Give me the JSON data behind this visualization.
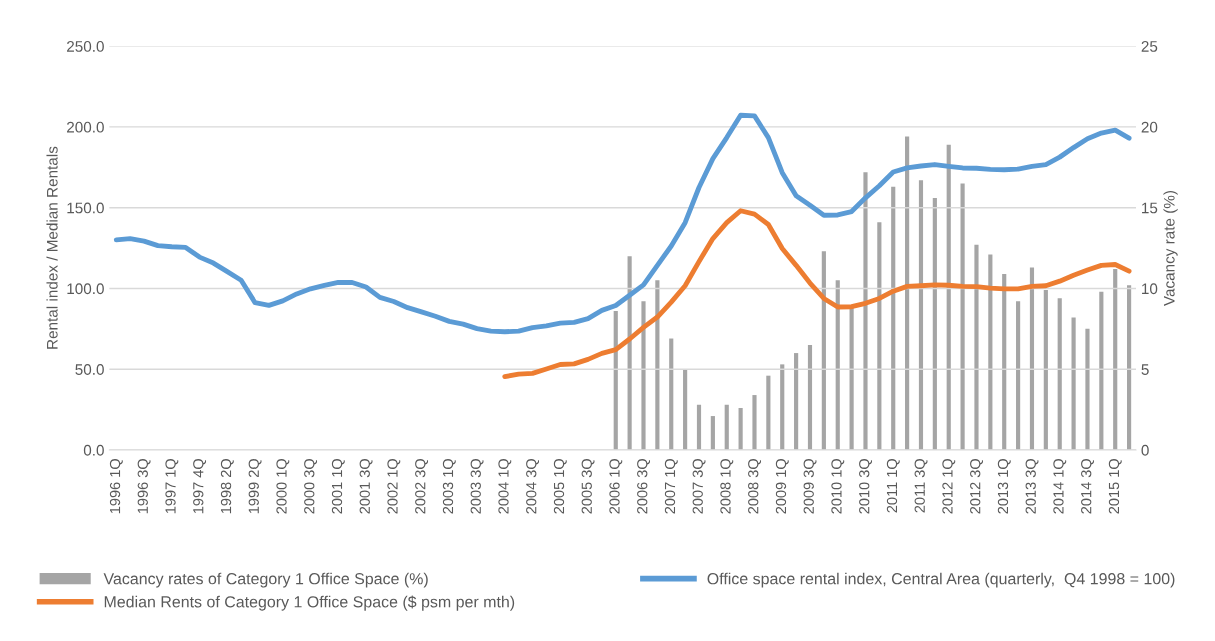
{
  "chart_data": {
    "type": "line",
    "ylabel": "Rental index / Median Rentals",
    "y2label": "Vacancy rate (%)",
    "categories": [
      "1996 1Q",
      null,
      "1996 3Q",
      null,
      "1997 1Q",
      null,
      "1997 4Q",
      null,
      "1998 2Q",
      null,
      "1999 2Q",
      null,
      "2000 1Q",
      null,
      "2000 3Q",
      null,
      "2001 1Q",
      null,
      "2001 3Q",
      null,
      "2002 1Q",
      null,
      "2002 3Q",
      null,
      "2003 1Q",
      null,
      "2003 3Q",
      null,
      "2004 1Q",
      null,
      "2004 3Q",
      null,
      "2005 1Q",
      null,
      "2005 3Q",
      null,
      "2006 1Q",
      null,
      "2006 3Q",
      null,
      "2007 1Q",
      null,
      "2007 3Q",
      null,
      "2008 1Q",
      null,
      "2008 3Q",
      null,
      "2009 1Q",
      null,
      "2009 3Q",
      null,
      "2010 1Q",
      null,
      "2010 3Q",
      null,
      "2011 1Q",
      null,
      "2011 3Q",
      null,
      "2012 1Q",
      null,
      "2012 3Q",
      null,
      "2013 1Q",
      null,
      "2013 3Q",
      null,
      "2014 1Q",
      null,
      "2014 3Q",
      null,
      "2015 1Q",
      null
    ],
    "series": [
      {
        "name": "Vacancy rates of Category 1 Office Space (%)",
        "type": "bar",
        "axis": "y2",
        "color": "#a5a5a5",
        "values": [
          null,
          null,
          null,
          null,
          null,
          null,
          null,
          null,
          null,
          null,
          null,
          null,
          null,
          null,
          null,
          null,
          null,
          null,
          null,
          null,
          null,
          null,
          null,
          null,
          null,
          null,
          null,
          null,
          null,
          null,
          null,
          null,
          null,
          null,
          null,
          null,
          8.6,
          12.0,
          9.2,
          10.5,
          6.9,
          5.0,
          2.8,
          2.1,
          2.8,
          2.6,
          3.4,
          4.6,
          5.3,
          6.0,
          6.5,
          12.3,
          10.5,
          8.9,
          17.2,
          14.1,
          16.3,
          19.4,
          16.7,
          15.6,
          18.9,
          16.5,
          12.7,
          12.1,
          10.9,
          9.2,
          11.3,
          9.9,
          9.4,
          8.2,
          7.5,
          9.8,
          11.2,
          10.2
        ]
      },
      {
        "name": "Office space rental index, Central Area (quarterly,  Q4 1998 = 100)",
        "color": "#5b9bd5",
        "values": [
          130.1,
          130.8,
          129.3,
          126.5,
          125.8,
          125.4,
          119.4,
          115.7,
          110.4,
          105.1,
          91.2,
          89.5,
          92.3,
          96.6,
          99.8,
          101.9,
          103.7,
          103.7,
          100.9,
          94.5,
          91.9,
          88.1,
          85.5,
          82.8,
          79.6,
          77.9,
          75.1,
          73.6,
          73.2,
          73.6,
          75.8,
          76.8,
          78.5,
          79.0,
          81.3,
          86.4,
          89.4,
          95.8,
          102.2,
          114.3,
          126.3,
          140.7,
          162.5,
          180.4,
          193.4,
          207.2,
          206.8,
          193.4,
          171.7,
          157.4,
          151.5,
          145.3,
          145.5,
          147.6,
          156.1,
          163.6,
          172.1,
          174.6,
          175.8,
          176.7,
          175.6,
          174.6,
          174.4,
          173.7,
          173.5,
          173.9,
          175.6,
          176.7,
          181.3,
          187.2,
          192.7,
          196.2,
          198.0,
          193.0
        ]
      },
      {
        "name": "Median Rents of Category 1 Office Space ($ psm per mth)",
        "color": "#ed7d31",
        "values": [
          null,
          null,
          null,
          null,
          null,
          null,
          null,
          null,
          null,
          null,
          null,
          null,
          null,
          null,
          null,
          null,
          null,
          null,
          null,
          null,
          null,
          null,
          null,
          null,
          null,
          null,
          null,
          null,
          45.4,
          47.0,
          47.4,
          50.1,
          52.9,
          53.3,
          56.1,
          59.8,
          62.1,
          68.7,
          75.9,
          82.3,
          91.5,
          101.7,
          116.6,
          130.9,
          140.7,
          148.1,
          146.0,
          139.6,
          124.7,
          114.3,
          103.3,
          93.8,
          88.5,
          88.7,
          90.8,
          93.8,
          98.3,
          101.3,
          101.7,
          102.2,
          102.0,
          101.3,
          101.1,
          100.2,
          99.7,
          99.7,
          101.3,
          101.7,
          104.5,
          108.2,
          111.4,
          114.3,
          114.8,
          110.7
        ]
      }
    ],
    "ylim": [
      0,
      250
    ],
    "yticks": [
      {
        "value": 0,
        "label": "0.0"
      },
      {
        "value": 50,
        "label": "50.0"
      },
      {
        "value": 100,
        "label": "100.0"
      },
      {
        "value": 150,
        "label": "150.0"
      },
      {
        "value": 200,
        "label": "200.0"
      },
      {
        "value": 250,
        "label": "250.0"
      }
    ],
    "y2lim": [
      0,
      25
    ],
    "y2ticks": [
      0,
      5,
      10,
      15,
      20,
      25
    ],
    "grid": "y",
    "legend": "bottom",
    "marker": "none",
    "line_style": "solid"
  }
}
